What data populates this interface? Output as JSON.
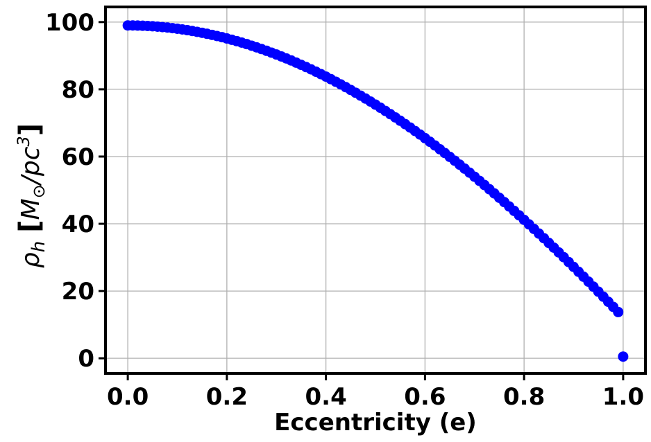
{
  "chart_data": {
    "type": "scatter",
    "title": "",
    "xlabel": "Eccentricity (e)",
    "ylabel": {
      "symbol": "ρ",
      "subscript": "h",
      "open_bracket": "[",
      "unit_symbol": "M",
      "unit_subscript": "⊙",
      "slash": "/pc",
      "exponent": "3",
      "close_bracket": "]"
    },
    "xlim": [
      -0.045,
      1.045
    ],
    "ylim": [
      -4.5,
      104.5
    ],
    "xticks": [
      0.0,
      0.2,
      0.4,
      0.6,
      0.8,
      1.0
    ],
    "xtick_labels": [
      "0.0",
      "0.2",
      "0.4",
      "0.6",
      "0.8",
      "1.0"
    ],
    "yticks": [
      0,
      20,
      40,
      60,
      80,
      100
    ],
    "ytick_labels": [
      "0",
      "20",
      "40",
      "60",
      "80",
      "100"
    ],
    "grid": true,
    "marker_color": "#0000ff",
    "series": [
      {
        "x": [
          0.0,
          0.01,
          0.02,
          0.03,
          0.04,
          0.05,
          0.06,
          0.07,
          0.08,
          0.09,
          0.1,
          0.11,
          0.12,
          0.13,
          0.14,
          0.15,
          0.16,
          0.17,
          0.18,
          0.19,
          0.2,
          0.21,
          0.22,
          0.23,
          0.24,
          0.25,
          0.26,
          0.27,
          0.28,
          0.29,
          0.3,
          0.31,
          0.32,
          0.33,
          0.34,
          0.35,
          0.36,
          0.37,
          0.38,
          0.39,
          0.4,
          0.41,
          0.42,
          0.43,
          0.44,
          0.45,
          0.46,
          0.47,
          0.48,
          0.49,
          0.5,
          0.51,
          0.52,
          0.53,
          0.54,
          0.55,
          0.56,
          0.57,
          0.58,
          0.59,
          0.6,
          0.61,
          0.62,
          0.63,
          0.64,
          0.65,
          0.66,
          0.67,
          0.68,
          0.69,
          0.7,
          0.71,
          0.72,
          0.73,
          0.74,
          0.75,
          0.76,
          0.77,
          0.78,
          0.79,
          0.8,
          0.81,
          0.82,
          0.83,
          0.84,
          0.85,
          0.86,
          0.87,
          0.88,
          0.89,
          0.9,
          0.91,
          0.92,
          0.93,
          0.94,
          0.95,
          0.96,
          0.97,
          0.98,
          0.99,
          1.0
        ],
        "y": [
          99.0,
          98.99,
          98.96,
          98.9,
          98.84,
          98.75,
          98.64,
          98.51,
          98.37,
          98.2,
          98.02,
          97.81,
          97.59,
          97.35,
          97.09,
          96.81,
          96.51,
          96.19,
          95.85,
          95.5,
          95.12,
          94.73,
          94.32,
          93.89,
          93.44,
          92.97,
          92.48,
          91.98,
          91.46,
          90.91,
          90.35,
          89.78,
          89.18,
          88.57,
          87.93,
          87.28,
          86.62,
          85.93,
          85.23,
          84.51,
          83.77,
          83.01,
          82.24,
          81.45,
          80.64,
          79.81,
          78.97,
          78.11,
          77.24,
          76.35,
          75.44,
          74.51,
          73.57,
          72.61,
          71.64,
          70.65,
          69.65,
          68.63,
          67.59,
          66.54,
          65.47,
          64.39,
          63.29,
          62.18,
          61.05,
          59.91,
          58.76,
          57.59,
          56.41,
          55.21,
          54.0,
          52.77,
          51.54,
          50.28,
          49.02,
          47.74,
          46.45,
          45.15,
          43.84,
          42.51,
          41.17,
          39.82,
          38.46,
          37.09,
          35.71,
          34.31,
          32.91,
          31.49,
          30.07,
          28.63,
          27.18,
          25.73,
          24.26,
          22.79,
          21.3,
          19.81,
          18.31,
          16.8,
          15.28,
          13.75,
          0.5
        ]
      }
    ]
  }
}
